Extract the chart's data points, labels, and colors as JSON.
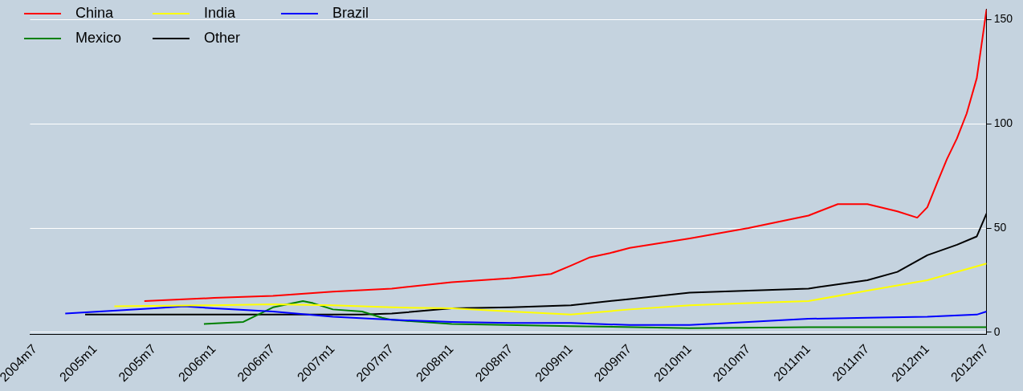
{
  "chart_data": {
    "type": "line",
    "legend": "top left",
    "grid": "y",
    "xlim": [
      "2004-06-15",
      "2012-07"
    ],
    "ylim": [
      -1,
      155
    ],
    "yticks": [
      0,
      50,
      100,
      150
    ],
    "xticks": [
      {
        "value": "2004-07",
        "label": "2004m7"
      },
      {
        "value": "2005-01",
        "label": "2005m1"
      },
      {
        "value": "2005-07",
        "label": "2005m7"
      },
      {
        "value": "2006-01",
        "label": "2006m1"
      },
      {
        "value": "2006-07",
        "label": "2006m7"
      },
      {
        "value": "2007-01",
        "label": "2007m1"
      },
      {
        "value": "2007-07",
        "label": "2007m7"
      },
      {
        "value": "2008-01",
        "label": "2008m1"
      },
      {
        "value": "2008-07",
        "label": "2008m7"
      },
      {
        "value": "2009-01",
        "label": "2009m1"
      },
      {
        "value": "2009-07",
        "label": "2009m7"
      },
      {
        "value": "2010-01",
        "label": "2010m1"
      },
      {
        "value": "2010-07",
        "label": "2010m7"
      },
      {
        "value": "2011-01",
        "label": "2011m1"
      },
      {
        "value": "2011-07",
        "label": "2011m7"
      },
      {
        "value": "2012-01",
        "label": "2012m1"
      },
      {
        "value": "2012-07",
        "label": "2012m7"
      }
    ],
    "series": [
      {
        "name": "China",
        "color": "#ff0000",
        "x": [
          "2005-06",
          "2006-01",
          "2006-07",
          "2007-01",
          "2007-07",
          "2008-01",
          "2008-07",
          "2008-11",
          "2009-01",
          "2009-03",
          "2009-05",
          "2009-07",
          "2010-01",
          "2010-07",
          "2011-01",
          "2011-04",
          "2011-07",
          "2011-10",
          "2011-12",
          "2012-01",
          "2012-02",
          "2012-03",
          "2012-04",
          "2012-05",
          "2012-06",
          "2012-07"
        ],
        "values": [
          15,
          16.5,
          17.5,
          19.5,
          21,
          24,
          26,
          28,
          32,
          36,
          38,
          40.5,
          45,
          50,
          56,
          61.5,
          61.5,
          58,
          55,
          60,
          72,
          83,
          93,
          105,
          122,
          155
        ]
      },
      {
        "name": "India",
        "color": "#ffff00",
        "x": [
          "2005-03",
          "2006-01",
          "2006-07",
          "2007-01",
          "2007-07",
          "2008-01",
          "2008-07",
          "2009-01",
          "2009-07",
          "2010-01",
          "2010-07",
          "2011-01",
          "2011-07",
          "2012-01",
          "2012-07"
        ],
        "values": [
          12.5,
          13,
          13.5,
          13,
          12,
          11.5,
          10,
          8.5,
          11,
          13,
          14,
          15,
          20,
          25,
          33
        ]
      },
      {
        "name": "Brazil",
        "color": "#0000ff",
        "x": [
          "2004-10",
          "2005-07",
          "2005-10",
          "2006-01",
          "2006-07",
          "2007-01",
          "2007-07",
          "2008-01",
          "2008-07",
          "2009-01",
          "2009-07",
          "2010-01",
          "2010-07",
          "2011-01",
          "2011-07",
          "2012-01",
          "2012-06",
          "2012-07"
        ],
        "values": [
          9,
          11.5,
          12.5,
          11.5,
          10,
          7.5,
          6,
          5,
          4.5,
          4.5,
          3.5,
          3.5,
          5,
          6.5,
          7,
          7.5,
          8.5,
          10
        ]
      },
      {
        "name": "Mexico",
        "color": "#008000",
        "x": [
          "2005-12",
          "2006-04",
          "2006-07",
          "2006-10",
          "2006-11",
          "2007-01",
          "2007-04",
          "2007-06",
          "2007-07",
          "2008-01",
          "2009-01",
          "2010-01",
          "2011-01",
          "2012-07"
        ],
        "values": [
          4,
          5,
          12,
          15,
          14,
          11,
          10,
          7,
          6,
          4,
          3,
          2,
          2.5,
          2.5
        ]
      },
      {
        "name": "Other",
        "color": "#000000",
        "x": [
          "2004-12",
          "2007-04",
          "2007-07",
          "2008-01",
          "2008-07",
          "2009-01",
          "2009-07",
          "2010-01",
          "2010-07",
          "2011-01",
          "2011-07",
          "2011-10",
          "2012-01",
          "2012-04",
          "2012-06",
          "2012-07"
        ],
        "values": [
          8.5,
          8.5,
          9,
          11.5,
          12,
          13,
          16,
          19,
          20,
          21,
          25,
          29,
          37,
          42,
          46,
          57
        ]
      }
    ]
  }
}
